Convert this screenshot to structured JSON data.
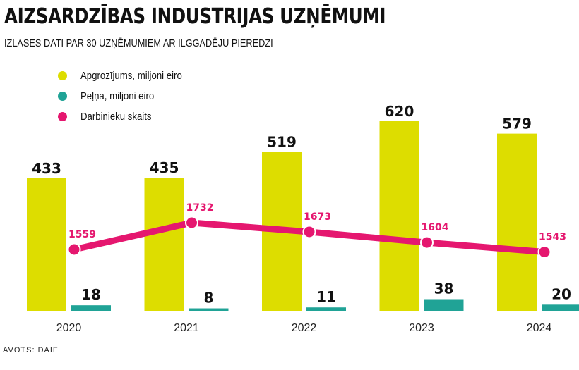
{
  "header": {
    "title": "AIZSARDZĪBAS INDUSTRIJAS UZŅĒMUMI",
    "subtitle": "IZLASES DATI PAR 30 UZŅĒMUMIEM AR ILGGADĒJU PIEREDZI"
  },
  "footer": {
    "source": "AVOTS: DAIF"
  },
  "colors": {
    "revenue": "#dddd00",
    "profit": "#20a396",
    "employees": "#e5176f"
  },
  "chart_data": {
    "type": "bar",
    "title": "AIZSARDZĪBAS INDUSTRIJAS UZŅĒMUMI",
    "subtitle": "IZLASES DATI PAR 30 UZŅĒMUMIEM AR ILGGADĒJU PIEREDZI",
    "categories": [
      "2020",
      "2021",
      "2022",
      "2023",
      "2024"
    ],
    "series": [
      {
        "name": "Apgrozījums, miljoni eiro",
        "kind": "bar",
        "color": "#dddd00",
        "values": [
          433,
          435,
          519,
          620,
          579
        ]
      },
      {
        "name": "Peļņa, miljoni eiro",
        "kind": "bar",
        "color": "#20a396",
        "values": [
          18,
          8,
          11,
          38,
          20
        ]
      },
      {
        "name": "Darbinieku skaits",
        "kind": "line",
        "color": "#e5176f",
        "values": [
          1559,
          1732,
          1673,
          1604,
          1543
        ]
      }
    ],
    "xlabel": "",
    "ylabel": "",
    "ylim": [
      0,
      650
    ],
    "line_ylim": [
      0,
      2000
    ],
    "grid": false,
    "legend": "top-left",
    "source": "AVOTS: DAIF"
  }
}
